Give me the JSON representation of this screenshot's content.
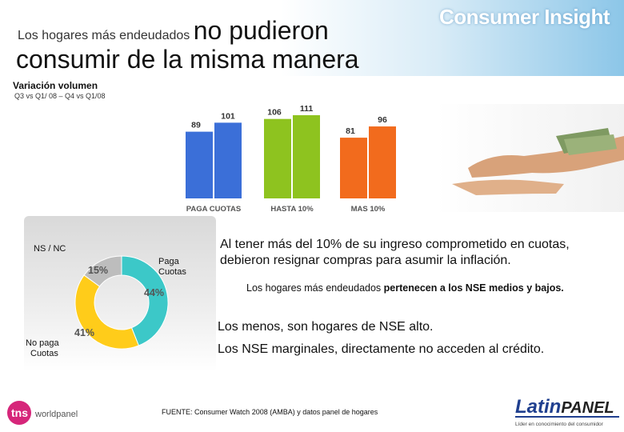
{
  "header": {
    "title_small": "Los hogares más endeudados",
    "title_big": "no pudieron",
    "title_line2": "consumir de la misma manera",
    "brand": "Consumer Insight"
  },
  "subheader": {
    "label": "Variación volumen",
    "period": "Q3 vs Q1/ 08 – Q4 vs Q1/08"
  },
  "chart_data": [
    {
      "type": "bar",
      "categories": [
        "PAGA CUOTAS",
        "HASTA 10%",
        "MAS 10%"
      ],
      "series": [
        {
          "values": [
            89,
            106,
            81
          ]
        },
        {
          "values": [
            101,
            111,
            96
          ]
        }
      ],
      "colors": [
        "#3b6fd8",
        "#8ec31f",
        "#f26b1d"
      ],
      "ylim": [
        0,
        111
      ]
    },
    {
      "type": "pie",
      "title": "",
      "labels": [
        "Paga Cuotas",
        "No paga Cuotas",
        "NS / NC"
      ],
      "values": [
        44,
        41,
        15
      ],
      "value_labels": [
        "44%",
        "41%",
        "15%"
      ],
      "colors": [
        "#3cc8c8",
        "#ffcc1a",
        "#bdbdbd"
      ],
      "legend_texts": {
        "ns_nc": "NS / NC",
        "paga": "Paga Cuotas",
        "no_paga": "No paga Cuotas"
      }
    }
  ],
  "body": {
    "main": "Al tener más del 10% de su ingreso comprometido en cuotas, debieron resignar compras para asumir la inflación.",
    "note_plain": "Los hogares más endeudados",
    "note_bold": "pertenecen a los NSE medios y bajos.",
    "line_a": "Los menos, son hogares de NSE alto.",
    "line_b": "Los NSE marginales, directamente no acceden al crédito."
  },
  "footer": {
    "source": "FUENTE: Consumer Watch 2008 (AMBA) y datos panel de hogares",
    "tns_prefix": "tns",
    "tns_suffix": "worldpanel",
    "latin_brand_a": "Latin",
    "latin_brand_b": "PANEL",
    "latin_tagline": "Líder en conocimiento del consumidor"
  }
}
